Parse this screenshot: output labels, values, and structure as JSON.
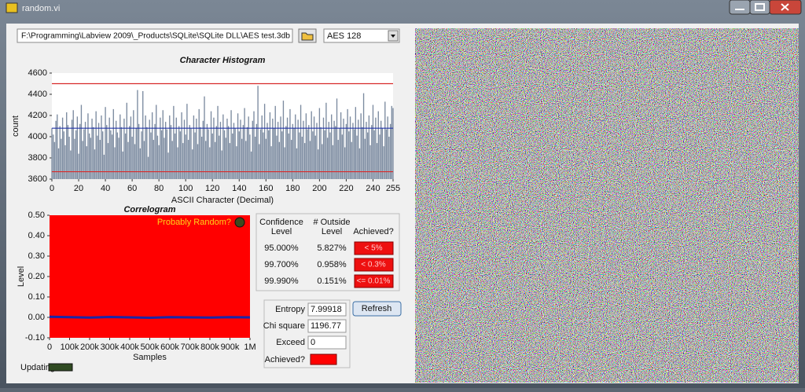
{
  "window": {
    "title": "random.vi"
  },
  "toolbar": {
    "path": "F:\\Programming\\Labview 2009\\_Products\\SQLite\\SQLite DLL\\AES test.3db",
    "mode": "AES 128"
  },
  "chart_data": [
    {
      "type": "bar",
      "title": "Character Histogram",
      "x_label": "ASCII Character (Decimal)",
      "y_label": "count",
      "color": "#7c8ba0",
      "plot_background": "#ffffff",
      "xlim": [
        0,
        255
      ],
      "xticks": [
        0,
        20,
        40,
        60,
        80,
        100,
        120,
        140,
        160,
        180,
        200,
        220,
        240,
        255
      ],
      "ylim": [
        3600,
        4600
      ],
      "yticks": [
        3600,
        3800,
        4000,
        4200,
        4400,
        4600
      ],
      "hlines": [
        {
          "value": 4500,
          "color": "#d82a2a"
        },
        {
          "value": 3670,
          "color": "#d82a2a"
        },
        {
          "value": 4080,
          "color": "#2233a8"
        }
      ],
      "x": [
        0,
        1,
        2,
        3,
        4,
        5,
        6,
        7,
        8,
        9,
        10,
        11,
        12,
        13,
        14,
        15,
        16,
        17,
        18,
        19,
        20,
        21,
        22,
        23,
        24,
        25,
        26,
        27,
        28,
        29,
        30,
        31,
        32,
        33,
        34,
        35,
        36,
        37,
        38,
        39,
        40,
        41,
        42,
        43,
        44,
        45,
        46,
        47,
        48,
        49,
        50,
        51,
        52,
        53,
        54,
        55,
        56,
        57,
        58,
        59,
        60,
        61,
        62,
        63,
        64,
        65,
        66,
        67,
        68,
        69,
        70,
        71,
        72,
        73,
        74,
        75,
        76,
        77,
        78,
        79,
        80,
        81,
        82,
        83,
        84,
        85,
        86,
        87,
        88,
        89,
        90,
        91,
        92,
        93,
        94,
        95,
        96,
        97,
        98,
        99,
        100,
        101,
        102,
        103,
        104,
        105,
        106,
        107,
        108,
        109,
        110,
        111,
        112,
        113,
        114,
        115,
        116,
        117,
        118,
        119,
        120,
        121,
        122,
        123,
        124,
        125,
        126,
        127,
        128,
        129,
        130,
        131,
        132,
        133,
        134,
        135,
        136,
        137,
        138,
        139,
        140,
        141,
        142,
        143,
        144,
        145,
        146,
        147,
        148,
        149,
        150,
        151,
        152,
        153,
        154,
        155,
        156,
        157,
        158,
        159,
        160,
        161,
        162,
        163,
        164,
        165,
        166,
        167,
        168,
        169,
        170,
        171,
        172,
        173,
        174,
        175,
        176,
        177,
        178,
        179,
        180,
        181,
        182,
        183,
        184,
        185,
        186,
        187,
        188,
        189,
        190,
        191,
        192,
        193,
        194,
        195,
        196,
        197,
        198,
        199,
        200,
        201,
        202,
        203,
        204,
        205,
        206,
        207,
        208,
        209,
        210,
        211,
        212,
        213,
        214,
        215,
        216,
        217,
        218,
        219,
        220,
        221,
        222,
        223,
        224,
        225,
        226,
        227,
        228,
        229,
        230,
        231,
        232,
        233,
        234,
        235,
        236,
        237,
        238,
        239,
        240,
        241,
        242,
        243,
        244,
        245,
        246,
        247,
        248,
        249,
        250,
        251,
        252,
        253,
        254,
        255
      ],
      "values": [
        4080,
        4020,
        3950,
        4150,
        4210,
        3890,
        4100,
        3980,
        4180,
        4050,
        3920,
        4230,
        4110,
        4000,
        3870,
        4160,
        4250,
        3980,
        4060,
        4190,
        3840,
        4120,
        4300,
        3960,
        4070,
        4140,
        3910,
        4220,
        4030,
        3990,
        4170,
        4090,
        3880,
        4240,
        4010,
        4130,
        3970,
        4200,
        4050,
        3830,
        4280,
        4110,
        3940,
        4180,
        4060,
        4020,
        4260,
        3900,
        4150,
        4040,
        3990,
        4210,
        4090,
        3860,
        4170,
        4030,
        4320,
        3950,
        4100,
        4190,
        4000,
        4250,
        3930,
        4080,
        4440,
        4120,
        3890,
        4050,
        4430,
        3960,
        4200,
        4090,
        3810,
        4160,
        4040,
        4230,
        3970,
        4120,
        4300,
        4010,
        3920,
        4180,
        4060,
        4250,
        3990,
        4140,
        4070,
        3850,
        4200,
        4110,
        3960,
        4290,
        4030,
        4180,
        3900,
        4100,
        4050,
        4230,
        3940,
        4160,
        4020,
        4310,
        3970,
        4110,
        4080,
        3880,
        4200,
        4040,
        4170,
        3930,
        4260,
        4090,
        4000,
        4150,
        4380,
        3960,
        4120,
        4070,
        3900,
        4240,
        4030,
        4180,
        3950,
        4100,
        4290,
        4010,
        4140,
        3870,
        4210,
        4060,
        3990,
        4170,
        4100,
        3940,
        4250,
        4030,
        4130,
        4080,
        3910,
        4220,
        4050,
        4160,
        3980,
        4110,
        4270,
        3960,
        4090,
        4190,
        4020,
        3860,
        4150,
        4240,
        4000,
        4120,
        4480,
        3930,
        4070,
        4200,
        4040,
        4310,
        3980,
        4130,
        4060,
        4230,
        3910,
        4170,
        4080,
        4290,
        4010,
        4140,
        3950,
        4190,
        4050,
        4340,
        3900,
        4100,
        4180,
        4030,
        4260,
        3970,
        4120,
        4080,
        4210,
        3890,
        4160,
        4040,
        4300,
        4000,
        4150,
        3940,
        4220,
        4070,
        4110,
        3960,
        4240,
        4050,
        4190,
        4010,
        4130,
        3880,
        4270,
        4090,
        3930,
        4180,
        4060,
        4320,
        3990,
        4140,
        4040,
        4210,
        3920,
        4150,
        4100,
        4360,
        3970,
        4080,
        4230,
        4020,
        4170,
        3900,
        4120,
        4260,
        4050,
        4190,
        3950,
        4130,
        4070,
        4280,
        4010,
        4160,
        3890,
        4220,
        4090,
        4410,
        3980,
        4140,
        4040,
        4200,
        3920,
        4110,
        4300,
        4060,
        4180,
        3940,
        4240,
        4020,
        4150,
        4080,
        3910,
        4330,
        4070,
        4190,
        4000,
        4120,
        4290,
        4270
      ]
    },
    {
      "type": "line",
      "title": "Correlogram",
      "x_label": "Samples",
      "y_label": "Level",
      "color": "#1a26a8",
      "plot_background": "#ff0000",
      "annotation": {
        "text": "Probably Random?",
        "color": "#ffd21a"
      },
      "xlim": [
        0,
        1000000
      ],
      "xticks": [
        0,
        {
          "value": 100000,
          "label": "100k"
        },
        {
          "value": 200000,
          "label": "200k"
        },
        {
          "value": 300000,
          "label": "300k"
        },
        {
          "value": 400000,
          "label": "400k"
        },
        {
          "value": 500000,
          "label": "500k"
        },
        {
          "value": 600000,
          "label": "600k"
        },
        {
          "value": 700000,
          "label": "700k"
        },
        {
          "value": 800000,
          "label": "800k"
        },
        {
          "value": 900000,
          "label": "900k"
        },
        {
          "value": 1000000,
          "label": "1M"
        }
      ],
      "ylim": [
        -0.1,
        0.5
      ],
      "yticks": [
        {
          "value": -0.1,
          "label": "-0.10"
        },
        {
          "value": 0,
          "label": "0.00"
        },
        {
          "value": 0.1,
          "label": "0.10"
        },
        {
          "value": 0.2,
          "label": "0.20"
        },
        {
          "value": 0.3,
          "label": "0.30"
        },
        {
          "value": 0.4,
          "label": "0.40"
        },
        {
          "value": 0.5,
          "label": "0.50"
        }
      ],
      "x": [
        0,
        100000,
        200000,
        300000,
        400000,
        500000,
        600000,
        700000,
        800000,
        900000,
        1000000
      ],
      "values": [
        0.003,
        0.001,
        -0.001,
        0.002,
        0.0,
        -0.002,
        0.001,
        0.0,
        -0.001,
        0.001,
        0.0
      ]
    }
  ],
  "confidence": {
    "headers": [
      [
        "Confidence",
        "Level"
      ],
      [
        "# Outside",
        "Level"
      ],
      [
        "Achieved?"
      ]
    ],
    "rows": [
      [
        "95.000%",
        "5.827%",
        "< 5%"
      ],
      [
        "99.700%",
        "0.958%",
        "< 0.3%"
      ],
      [
        "99.990%",
        "0.151%",
        "<= 0.01%"
      ]
    ]
  },
  "stats": {
    "entropy_label": "Entropy",
    "entropy": "7.99918",
    "chi_label": "Chi square",
    "chi": "1196.77",
    "exceed_label": "Exceed",
    "exceed": "0",
    "achieved_label": "Achieved?"
  },
  "refresh": "Refresh",
  "updating": "Updating"
}
